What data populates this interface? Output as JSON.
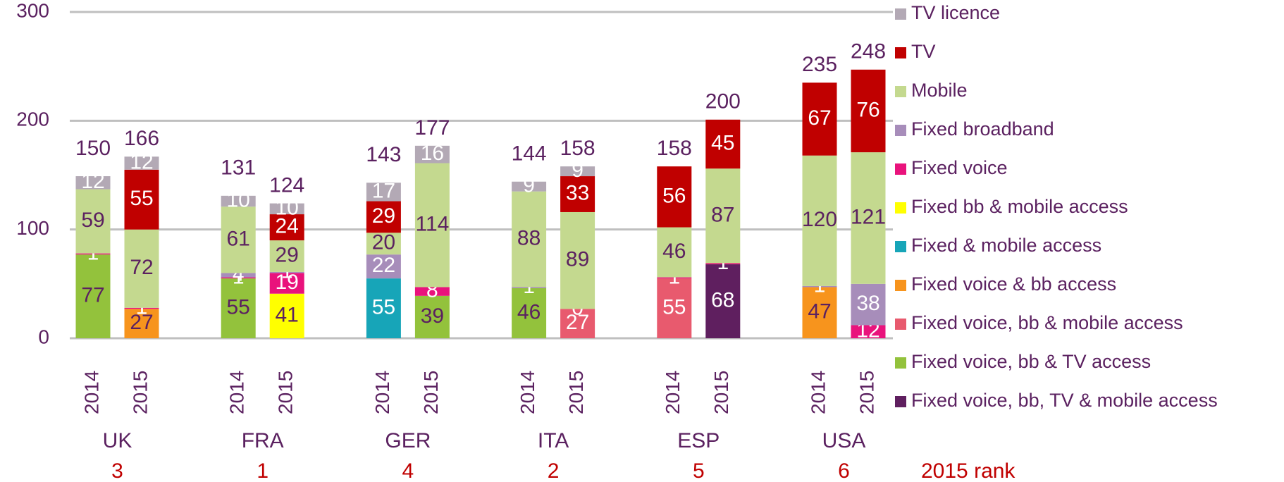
{
  "chart_data": {
    "type": "stacked_bar",
    "categories": [
      "2014",
      "2015",
      "2014",
      "2015",
      "2014",
      "2015",
      "2014",
      "2015",
      "2014",
      "2015",
      "2014",
      "2015"
    ],
    "groups": [
      "UK",
      "FRA",
      "GER",
      "ITA",
      "ESP",
      "USA"
    ],
    "ranks": [
      3,
      1,
      4,
      2,
      5,
      6
    ],
    "rank_label": "2015 rank",
    "totals": [
      150,
      166,
      131,
      124,
      143,
      177,
      144,
      158,
      158,
      200,
      235,
      248
    ],
    "ylim": [
      0,
      300
    ],
    "yticks": [
      0,
      100,
      200,
      300
    ],
    "grid": true,
    "legend": "right",
    "series": [
      {
        "name": "TV licence",
        "color": "#b3a9b5",
        "label_color": "#ffffff",
        "values": [
          12,
          12,
          10,
          10,
          17,
          16,
          9,
          9,
          null,
          null,
          null,
          null
        ]
      },
      {
        "name": "TV",
        "color": "#c00000",
        "label_color": "#ffffff",
        "values": [
          null,
          55,
          null,
          24,
          29,
          null,
          null,
          33,
          56,
          45,
          67,
          76
        ]
      },
      {
        "name": "Mobile",
        "color": "#c4d98f",
        "label_color": "#5b2160",
        "values": [
          59,
          72,
          61,
          29,
          20,
          114,
          88,
          89,
          46,
          87,
          120,
          121
        ]
      },
      {
        "name": "Fixed broadband",
        "color": "#a78dba",
        "label_color": "#ffffff",
        "values": [
          null,
          null,
          4,
          1,
          22,
          null,
          1,
          null,
          null,
          null,
          1,
          38
        ]
      },
      {
        "name": "Fixed voice",
        "color": "#e9137c",
        "label_color": "#ffffff",
        "values": [
          1,
          1,
          1,
          19,
          null,
          8,
          null,
          0,
          1,
          1,
          null,
          12
        ]
      },
      {
        "name": "Fixed bb & mobile access",
        "color": "#ffff00",
        "label_color": "#5b2160",
        "values": [
          null,
          null,
          null,
          41,
          null,
          null,
          null,
          null,
          null,
          null,
          null,
          null
        ]
      },
      {
        "name": "Fixed & mobile access",
        "color": "#17a5b8",
        "label_color": "#ffffff",
        "values": [
          null,
          null,
          null,
          null,
          55,
          null,
          null,
          null,
          null,
          null,
          null,
          null
        ]
      },
      {
        "name": "Fixed voice & bb access",
        "color": "#f7941d",
        "label_color": "#5b2160",
        "values": [
          null,
          27,
          null,
          null,
          null,
          null,
          null,
          null,
          null,
          null,
          47,
          null
        ]
      },
      {
        "name": "Fixed voice, bb & mobile access",
        "color": "#e85a6e",
        "label_color": "#ffffff",
        "values": [
          null,
          null,
          null,
          null,
          null,
          null,
          null,
          27,
          55,
          null,
          null,
          null
        ]
      },
      {
        "name": "Fixed voice, bb & TV access",
        "color": "#93c23c",
        "label_color": "#5b2160",
        "values": [
          77,
          null,
          55,
          null,
          null,
          39,
          46,
          null,
          null,
          null,
          null,
          null
        ]
      },
      {
        "name": "Fixed voice, bb, TV & mobile access",
        "color": "#5f1f5f",
        "label_color": "#ffffff",
        "values": [
          null,
          null,
          null,
          null,
          null,
          null,
          null,
          null,
          null,
          68,
          null,
          null
        ]
      }
    ]
  }
}
